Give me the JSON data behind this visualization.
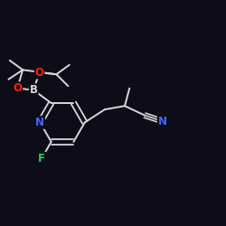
{
  "background_color": "#0d0d1a",
  "bond_color": "#d8d8d8",
  "atom_colors": {
    "N": "#4466ff",
    "O": "#ff2200",
    "B": "#d8d8d8",
    "F": "#33cc55",
    "C": "#d8d8d8"
  },
  "figsize": [
    2.5,
    2.5
  ],
  "dpi": 100
}
